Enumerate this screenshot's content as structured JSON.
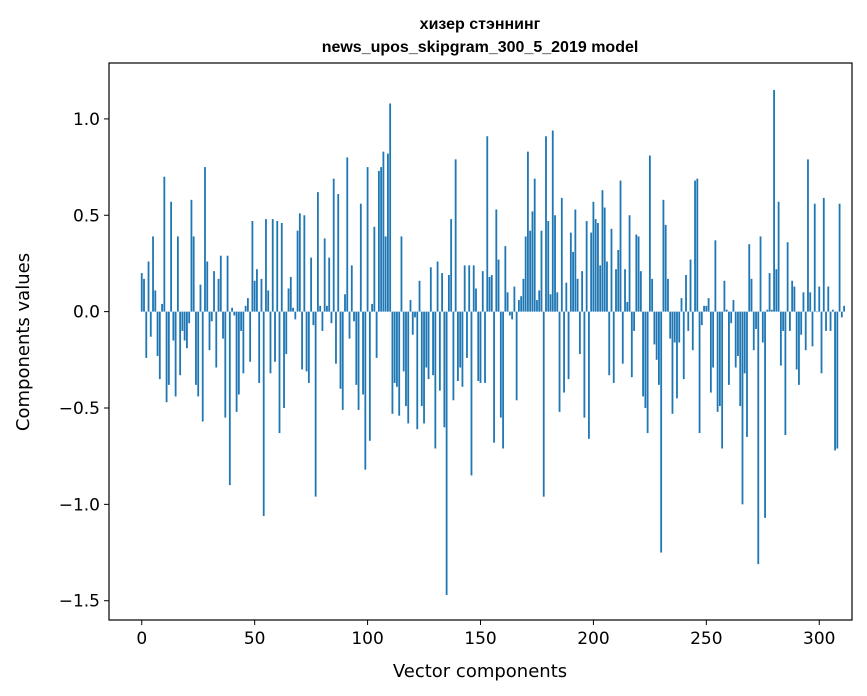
{
  "chart_data": {
    "type": "bar",
    "title_lines": [
      "хизер стэннинг",
      "news_upos_skipgram_300_5_2019 model"
    ],
    "xlabel": "Vector components",
    "ylabel": "Components values",
    "xlim": [
      -14.5,
      314.5
    ],
    "ylim": [
      -1.6,
      1.29
    ],
    "xticks": [
      0,
      50,
      100,
      150,
      200,
      250,
      300
    ],
    "xtick_labels": [
      "0",
      "50",
      "100",
      "150",
      "200",
      "250",
      "300"
    ],
    "yticks": [
      -1.5,
      -1.0,
      -0.5,
      0.0,
      0.5,
      1.0
    ],
    "ytick_labels": [
      "−1.5",
      "−1.0",
      "−0.5",
      "0.0",
      "0.5",
      "1.0"
    ],
    "bar_color": "#1f77b4",
    "grid": false,
    "values": [
      0.2,
      0.17,
      -0.24,
      0.26,
      -0.13,
      0.39,
      0.11,
      -0.23,
      -0.35,
      0.04,
      0.7,
      -0.47,
      -0.38,
      0.57,
      -0.15,
      -0.44,
      0.39,
      -0.33,
      -0.1,
      -0.15,
      -0.19,
      -0.06,
      0.58,
      0.39,
      -0.38,
      -0.44,
      0.14,
      -0.57,
      0.75,
      0.26,
      -0.2,
      -0.05,
      0.21,
      -0.29,
      0.17,
      0.29,
      -0.14,
      -0.55,
      0.29,
      -0.9,
      0.02,
      -0.02,
      -0.52,
      -0.43,
      -0.1,
      -0.32,
      0.03,
      0.07,
      -0.26,
      0.47,
      0.16,
      0.22,
      -0.37,
      0.17,
      -1.06,
      0.48,
      0.11,
      -0.32,
      0.48,
      -0.26,
      0.47,
      -0.63,
      0.46,
      -0.5,
      -0.22,
      0.12,
      0.18,
      0.02,
      -0.04,
      0.42,
      0.51,
      -0.3,
      0.5,
      -0.31,
      -0.37,
      0.28,
      -0.07,
      -0.96,
      0.62,
      0.03,
      -0.1,
      0.38,
      0.03,
      0.28,
      -0.06,
      0.69,
      -0.27,
      0.61,
      -0.4,
      -0.51,
      0.09,
      0.8,
      -0.14,
      0.24,
      -0.05,
      -0.38,
      -0.51,
      0.56,
      -0.43,
      -0.82,
      0.75,
      -0.67,
      0.04,
      0.44,
      -0.24,
      0.73,
      0.75,
      0.83,
      0.39,
      0.82,
      1.08,
      -0.53,
      -0.37,
      -0.39,
      -0.54,
      0.39,
      -0.31,
      -0.49,
      -0.58,
      0.06,
      -0.12,
      -0.03,
      -0.61,
      0.16,
      -0.49,
      -0.58,
      -0.29,
      -0.35,
      0.23,
      -0.33,
      -0.71,
      0.26,
      -0.41,
      0.2,
      -0.6,
      -1.47,
      0.19,
      0.48,
      -0.46,
      0.79,
      -0.36,
      -0.29,
      -0.39,
      0.24,
      -0.24,
      0.24,
      -0.85,
      0.24,
      0.12,
      -0.36,
      -0.37,
      0.21,
      -0.37,
      0.91,
      0.18,
      0.19,
      -0.68,
      0.53,
      0.27,
      -0.55,
      -0.71,
      0.34,
      0.1,
      -0.02,
      -0.04,
      0.13,
      -0.46,
      0.06,
      0.08,
      0.17,
      0.39,
      0.83,
      0.42,
      0.52,
      0.69,
      0.06,
      0.11,
      0.42,
      -0.96,
      0.91,
      0.47,
      0.09,
      0.94,
      0.5,
      0.1,
      -0.52,
      0.59,
      -0.42,
      0.15,
      -0.35,
      0.41,
      0.31,
      0.53,
      0.17,
      -0.22,
      0.21,
      -0.55,
      0.47,
      -0.66,
      0.41,
      0.57,
      0.48,
      0.46,
      0.24,
      0.63,
      0.54,
      0.26,
      -0.33,
      0.43,
      -0.37,
      0.22,
      0.32,
      0.68,
      -0.27,
      0.22,
      0.05,
      0.5,
      -0.34,
      -0.1,
      0.4,
      0.39,
      0.21,
      -0.44,
      -0.5,
      -0.63,
      0.81,
      0.17,
      -0.17,
      -0.25,
      -0.38,
      -1.25,
      0.58,
      0.45,
      0.17,
      -0.14,
      -0.53,
      -0.16,
      -0.45,
      -0.16,
      0.07,
      -0.35,
      0.19,
      -0.1,
      0.27,
      -0.2,
      0.68,
      0.69,
      -0.63,
      -0.07,
      0.03,
      0.03,
      0.07,
      -0.42,
      -0.29,
      0.37,
      -0.52,
      -0.49,
      -0.71,
      0.16,
      0.01,
      -0.38,
      -0.06,
      0.06,
      -0.29,
      -0.23,
      -0.49,
      -1.0,
      -0.32,
      -0.65,
      0.35,
      0.17,
      -0.2,
      -0.09,
      -1.31,
      0.39,
      -0.16,
      -1.07,
      0.01,
      0.2,
      0.01,
      1.15,
      0.22,
      0.57,
      -0.28,
      -0.1,
      -0.64,
      0.36,
      -0.1,
      0.16,
      0.13,
      -0.3,
      -0.38,
      -0.12,
      0.1,
      -0.2,
      0.79,
      0.1,
      -0.18,
      0.56,
      0.0,
      0.13,
      -0.32,
      0.59,
      -0.1,
      0.13,
      -0.1,
      0.01,
      -0.72,
      -0.71,
      0.56,
      -0.03,
      0.03
    ]
  }
}
